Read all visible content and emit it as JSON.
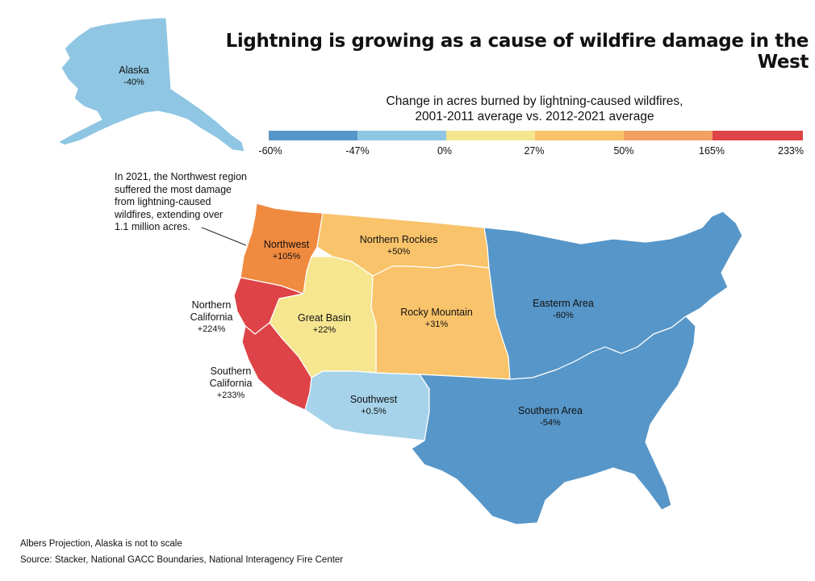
{
  "title": "Lightning is growing as a cause of wildfire damage in the West",
  "legend": {
    "title_line1": "Change in acres burned by lightning-caused wildfires,",
    "title_line2": "2001-2011 average vs. 2012-2021 average",
    "colors": [
      "#5796c8",
      "#8fc6e3",
      "#f6e690",
      "#f8c36a",
      "#f2a064",
      "#dd4347"
    ],
    "ticks": [
      "-60%",
      "-47%",
      "0%",
      "27%",
      "50%",
      "165%",
      "233%"
    ]
  },
  "regions": {
    "alaska": {
      "name": "Alaska",
      "value": "-40%",
      "color": "#8fc6e3"
    },
    "northwest": {
      "name": "Northwest",
      "value": "+105%",
      "color": "#f08a3f"
    },
    "northern_rockies": {
      "name": "Northern Rockies",
      "value": "+50%",
      "color": "#f8c36a"
    },
    "rocky_mountain": {
      "name": "Rocky Mountain",
      "value": "+31%",
      "color": "#f8c36a"
    },
    "great_basin": {
      "name": "Great Basin",
      "value": "+22%",
      "color": "#f6e690"
    },
    "northern_california": {
      "name_line1": "Northern",
      "name_line2": "California",
      "value": "+224%",
      "color": "#dd4347"
    },
    "southern_california": {
      "name_line1": "Southern",
      "name_line2": "California",
      "value": "+233%",
      "color": "#dd4347"
    },
    "southwest": {
      "name": "Southwest",
      "value": "+0.5%",
      "color": "#a6d3ea"
    },
    "eastern_area": {
      "name": "Easterm Area",
      "value": "-60%",
      "color": "#5796c8"
    },
    "southern_area": {
      "name": "Southern Area",
      "value": "-54%",
      "color": "#5796c8"
    }
  },
  "annotation": [
    "In 2021, the Northwest region",
    "suffered the most damage",
    "from lightning-caused",
    "wildfires, extending over",
    "1.1 million acres."
  ],
  "footer": {
    "projection_note": "Albers Projection, Alaska is not to scale",
    "source": "Source: Stacker, National GACC Boundaries, National Interagency Fire Center"
  }
}
